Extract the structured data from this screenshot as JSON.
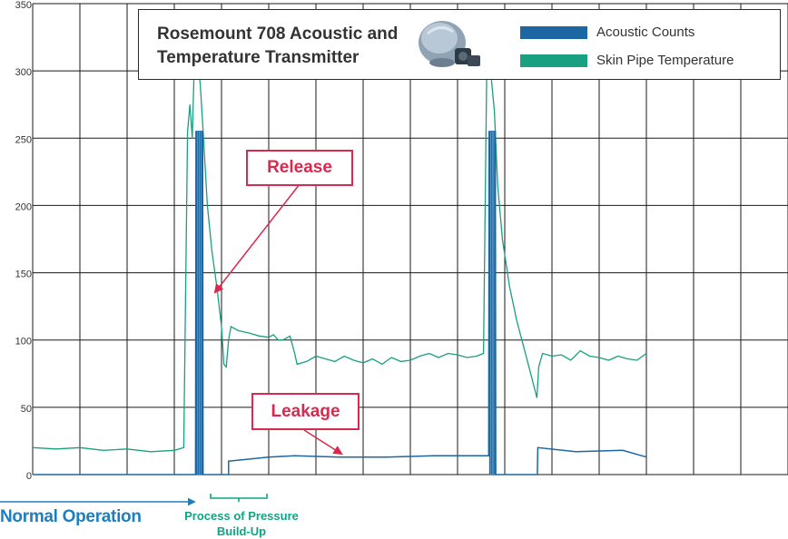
{
  "chart_data": {
    "type": "line",
    "title": "Rosemount 708 Acoustic and Temperature Transmitter",
    "xlabel": "",
    "ylabel": "",
    "ylim": [
      0,
      350
    ],
    "yticks": [
      0,
      50,
      100,
      150,
      200,
      250,
      300,
      350
    ],
    "grid": true,
    "legend_position": "top-right",
    "x_divisions": 16,
    "series": [
      {
        "name": "Acoustic Counts",
        "kind": "bar",
        "color": "#1b67a3",
        "points": [
          [
            0,
            0
          ],
          [
            3.45,
            0
          ],
          [
            3.46,
            255
          ],
          [
            3.6,
            255
          ],
          [
            3.61,
            0
          ],
          [
            4.15,
            0
          ],
          [
            4.15,
            10
          ],
          [
            5,
            13
          ],
          [
            5.55,
            14
          ],
          [
            6.5,
            13
          ],
          [
            7.5,
            13
          ],
          [
            8.5,
            14
          ],
          [
            9.5,
            14
          ],
          [
            9.66,
            14
          ],
          [
            9.67,
            255
          ],
          [
            9.8,
            255
          ],
          [
            9.81,
            0
          ],
          [
            10.69,
            0
          ],
          [
            10.7,
            20
          ],
          [
            11.5,
            17
          ],
          [
            12.5,
            18
          ],
          [
            13,
            13
          ]
        ]
      },
      {
        "name": "Skin Pipe Temperature",
        "kind": "line",
        "color": "#18a080",
        "points": [
          [
            0,
            20
          ],
          [
            0.5,
            19
          ],
          [
            1,
            20
          ],
          [
            1.5,
            18
          ],
          [
            2,
            19
          ],
          [
            2.5,
            17
          ],
          [
            3,
            18
          ],
          [
            3.2,
            20
          ],
          [
            3.28,
            255
          ],
          [
            3.33,
            275
          ],
          [
            3.38,
            250
          ],
          [
            3.42,
            300
          ],
          [
            3.47,
            310
          ],
          [
            3.5,
            305
          ],
          [
            3.55,
            290
          ],
          [
            3.62,
            250
          ],
          [
            3.7,
            200
          ],
          [
            3.8,
            165
          ],
          [
            3.9,
            140
          ],
          [
            4.0,
            110
          ],
          [
            4.05,
            82
          ],
          [
            4.1,
            80
          ],
          [
            4.15,
            100
          ],
          [
            4.2,
            110
          ],
          [
            4.35,
            107
          ],
          [
            4.6,
            105
          ],
          [
            4.8,
            103
          ],
          [
            5.0,
            102
          ],
          [
            5.1,
            104
          ],
          [
            5.2,
            100
          ],
          [
            5.3,
            100
          ],
          [
            5.45,
            103
          ],
          [
            5.55,
            90
          ],
          [
            5.6,
            82
          ],
          [
            5.8,
            84
          ],
          [
            6.0,
            88
          ],
          [
            6.2,
            86
          ],
          [
            6.4,
            84
          ],
          [
            6.6,
            88
          ],
          [
            6.8,
            85
          ],
          [
            7.0,
            83
          ],
          [
            7.2,
            86
          ],
          [
            7.4,
            82
          ],
          [
            7.6,
            87
          ],
          [
            7.8,
            84
          ],
          [
            8.0,
            85
          ],
          [
            8.2,
            88
          ],
          [
            8.4,
            90
          ],
          [
            8.6,
            87
          ],
          [
            8.8,
            90
          ],
          [
            9.0,
            89
          ],
          [
            9.2,
            87
          ],
          [
            9.4,
            88
          ],
          [
            9.55,
            90
          ],
          [
            9.62,
            305
          ],
          [
            9.7,
            300
          ],
          [
            9.78,
            270
          ],
          [
            9.85,
            215
          ],
          [
            9.95,
            175
          ],
          [
            10.1,
            140
          ],
          [
            10.25,
            115
          ],
          [
            10.4,
            95
          ],
          [
            10.55,
            75
          ],
          [
            10.68,
            57
          ],
          [
            10.72,
            80
          ],
          [
            10.8,
            90
          ],
          [
            11.0,
            88
          ],
          [
            11.2,
            89
          ],
          [
            11.4,
            85
          ],
          [
            11.6,
            92
          ],
          [
            11.8,
            88
          ],
          [
            12.0,
            87
          ],
          [
            12.2,
            85
          ],
          [
            12.4,
            88
          ],
          [
            12.6,
            86
          ],
          [
            12.8,
            85
          ],
          [
            13.0,
            90
          ]
        ]
      }
    ],
    "annotations": [
      {
        "text": "Release"
      },
      {
        "text": "Leakage"
      },
      {
        "text": "Normal Operation"
      },
      {
        "text": "Process of Pressure Build-Up"
      }
    ]
  },
  "colors": {
    "acoustic": "#1b67a3",
    "temperature": "#18a080",
    "callout": "#d9294e",
    "normal_operation": "#1c7fc2"
  },
  "legend": {
    "title": "Rosemount 708 Acoustic and Temperature Transmitter",
    "acoustic_label": "Acoustic Counts",
    "temperature_label": "Skin Pipe Temperature",
    "device_icon": "transmitter-icon"
  },
  "callouts": {
    "release": "Release",
    "leakage": "Leakage"
  },
  "bottom_notes": {
    "normal_operation": "Normal Operation",
    "process": "Process of Pressure Build-Up"
  }
}
